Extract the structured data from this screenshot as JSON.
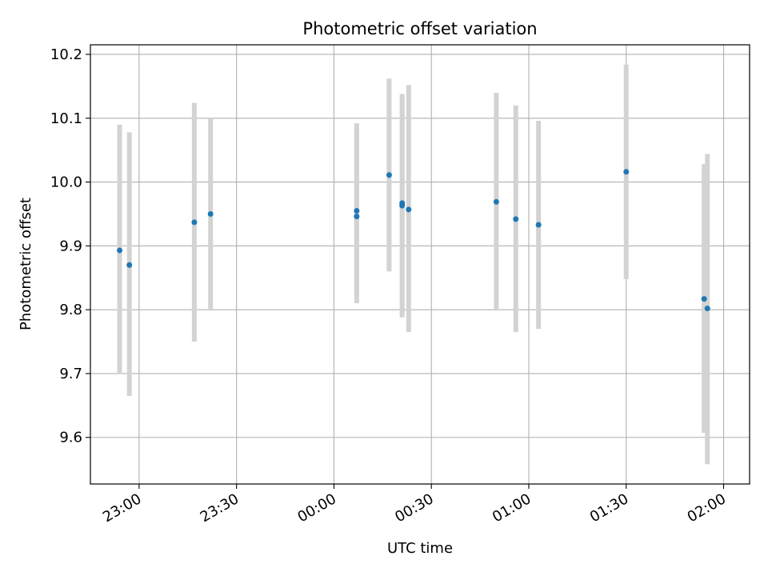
{
  "chart_data": {
    "type": "scatter",
    "title": "Photometric offset variation",
    "xlabel": "UTC time",
    "ylabel": "Photometric offset",
    "x_ticks": [
      "23:00",
      "23:30",
      "00:00",
      "00:30",
      "01:00",
      "01:30",
      "02:00"
    ],
    "y_ticks": [
      "9.6",
      "9.7",
      "9.8",
      "9.9",
      "10.0",
      "10.1",
      "10.2"
    ],
    "grid": true,
    "xlim": [
      "22:45",
      "02:08"
    ],
    "ylim": [
      9.527,
      10.215
    ],
    "errorbar_color": "#d3d3d3",
    "point_color": "#1f77b4",
    "series": [
      {
        "x": [
          "22:54",
          "22:57",
          "23:17",
          "23:22",
          "00:07",
          "00:07",
          "00:17",
          "00:21",
          "00:21",
          "00:23",
          "00:50",
          "00:56",
          "01:03",
          "01:30",
          "01:54",
          "01:55"
        ],
        "y": [
          9.893,
          9.87,
          9.937,
          9.95,
          9.946,
          9.955,
          10.011,
          9.963,
          9.967,
          9.957,
          9.969,
          9.942,
          9.933,
          10.016,
          9.817,
          9.802
        ],
        "err_low": [
          9.7,
          9.665,
          9.75,
          9.8,
          9.81,
          9.82,
          9.86,
          9.788,
          9.795,
          9.765,
          9.8,
          9.765,
          9.77,
          9.848,
          9.607,
          9.558
        ],
        "err_high": [
          10.09,
          10.078,
          10.124,
          10.1,
          10.085,
          10.092,
          10.162,
          10.138,
          10.134,
          10.152,
          10.14,
          10.12,
          10.096,
          10.184,
          10.028,
          10.044
        ]
      }
    ]
  }
}
